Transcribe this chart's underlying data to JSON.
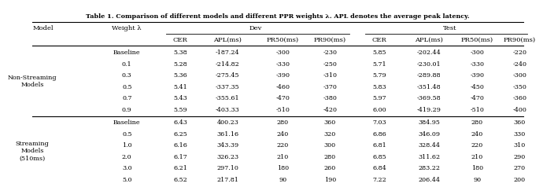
{
  "title": "Table 1. Comparison of different models and different PPR weights λ. APL denotes the average peak latency.",
  "model_groups": [
    {
      "name": "Non-Streaming\nModels",
      "rows": [
        [
          "Baseline",
          "5.38",
          "-187.24",
          "-300",
          "-230",
          "5.85",
          "-202.44",
          "-300",
          "-220"
        ],
        [
          "0.1",
          "5.28",
          "-214.82",
          "-330",
          "-250",
          "5.71",
          "-230.01",
          "-330",
          "-240"
        ],
        [
          "0.3",
          "5.36",
          "-275.45",
          "-390",
          "-310",
          "5.79",
          "-289.88",
          "-390",
          "-300"
        ],
        [
          "0.5",
          "5.41",
          "-337.35",
          "-460",
          "-370",
          "5.83",
          "-351.48",
          "-450",
          "-350"
        ],
        [
          "0.7",
          "5.43",
          "-355.61",
          "-470",
          "-380",
          "5.97",
          "-369.58",
          "-470",
          "-360"
        ],
        [
          "0.9",
          "5.59",
          "-403.33",
          "-510",
          "-420",
          "6.00",
          "-419.29",
          "-510",
          "-400"
        ]
      ]
    },
    {
      "name": "Streaming\nModels\n(510ms)",
      "rows": [
        [
          "Baseline",
          "6.43",
          "400.23",
          "280",
          "360",
          "7.03",
          "384.95",
          "280",
          "360"
        ],
        [
          "0.5",
          "6.25",
          "361.16",
          "240",
          "320",
          "6.86",
          "346.09",
          "240",
          "330"
        ],
        [
          "1.0",
          "6.16",
          "343.39",
          "220",
          "300",
          "6.81",
          "328.44",
          "220",
          "310"
        ],
        [
          "2.0",
          "6.17",
          "326.23",
          "210",
          "280",
          "6.85",
          "311.62",
          "210",
          "290"
        ],
        [
          "3.0",
          "6.21",
          "297.10",
          "180",
          "260",
          "6.84",
          "283.22",
          "180",
          "270"
        ],
        [
          "5.0",
          "6.52",
          "217.81",
          "90",
          "190",
          "7.22",
          "206.44",
          "90",
          "200"
        ]
      ]
    }
  ],
  "col_headers_l2": [
    "CER",
    "APL(ms)",
    "PR50(ms)",
    "PR90(ms)",
    "CER",
    "APL(ms)",
    "PR50(ms)",
    "PR90(ms)"
  ],
  "background_color": "#ffffff",
  "text_color": "#000000"
}
